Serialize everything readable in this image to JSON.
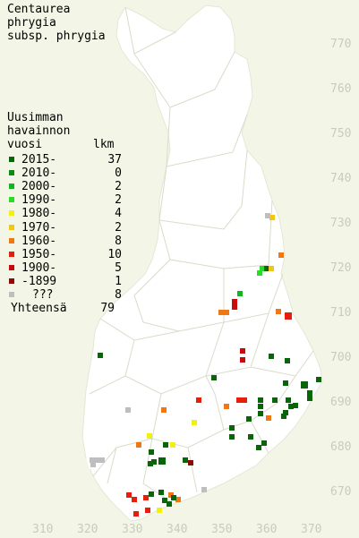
{
  "title": [
    "Centaurea",
    "phrygia",
    "subsp. phrygia"
  ],
  "legend": {
    "heading": [
      "Uusimman",
      "havainnon",
      "vuosi"
    ],
    "count_heading": "lkm",
    "items": [
      {
        "label": "2015-",
        "count": "37",
        "color": "#0a640a"
      },
      {
        "label": "2010-",
        "count": "0",
        "color": "#0a8c14"
      },
      {
        "label": "2000-",
        "count": "2",
        "color": "#14b41e"
      },
      {
        "label": "1990-",
        "count": "2",
        "color": "#28dc28"
      },
      {
        "label": "1980-",
        "count": "4",
        "color": "#f0f014"
      },
      {
        "label": "1970-",
        "count": "2",
        "color": "#f0c814"
      },
      {
        "label": "1960-",
        "count": "8",
        "color": "#f07814"
      },
      {
        "label": "1950-",
        "count": "10",
        "color": "#e61e0a"
      },
      {
        "label": "1900-",
        "count": "5",
        "color": "#c80a0a"
      },
      {
        "label": "-1899",
        "count": "1",
        "color": "#8c0a0a"
      },
      {
        "label": "???",
        "count": "8",
        "color": "#bebebe"
      }
    ],
    "total_label": "Yhteensä",
    "total": "79"
  },
  "grid_y_labels": [
    "770",
    "760",
    "750",
    "740",
    "730",
    "720",
    "710",
    "700",
    "690",
    "680",
    "670"
  ],
  "grid_x_labels": [
    "310",
    "320",
    "330",
    "340",
    "350",
    "360",
    "370"
  ],
  "colors": {
    "background": "#f3f6e6",
    "land": "#ffffff",
    "borders": "#d8dcc8",
    "grid_text": "#c9cbbd"
  }
}
